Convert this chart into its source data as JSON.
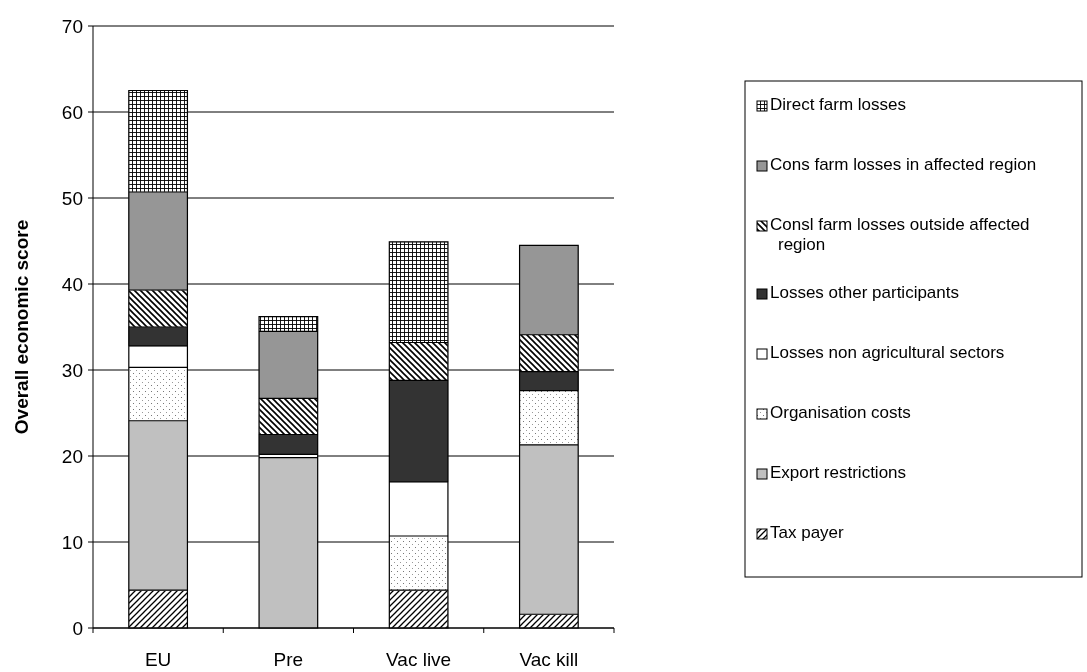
{
  "chart_data": {
    "type": "bar",
    "stacked": true,
    "ylabel": "Overall economic score",
    "categories": [
      "EU",
      "Pre",
      "Vac live",
      "Vac kill"
    ],
    "series": [
      {
        "name": "Tax payer",
        "color": "#a0a0a0",
        "values": [
          4.4,
          0,
          4.4,
          1.6
        ]
      },
      {
        "name": "Export restrictions",
        "color": "#c0c0c0",
        "values": [
          19.7,
          19.8,
          0,
          19.7
        ]
      },
      {
        "name": "Organisation costs",
        "color": "#eeeeee",
        "values": [
          6.2,
          0,
          6.3,
          6.3
        ]
      },
      {
        "name": "Losses non agricultural sectors",
        "color": "#ffffff",
        "values": [
          2.5,
          0.4,
          6.3,
          0
        ]
      },
      {
        "name": "Losses other participants",
        "color": "#333333",
        "values": [
          2.2,
          2.3,
          11.8,
          2.2
        ]
      },
      {
        "name": "Consl farm losses outside affected region",
        "color": "#a0a0a0",
        "values": [
          4.3,
          4.2,
          4.4,
          4.3
        ]
      },
      {
        "name": "Cons farm losses in affected region",
        "color": "#969696",
        "values": [
          11.4,
          7.8,
          0,
          10.4
        ]
      },
      {
        "name": "Direct farm losses",
        "color": "#b0b0b0",
        "values": [
          11.8,
          1.7,
          11.7,
          0
        ]
      }
    ],
    "ylim": [
      0,
      70
    ],
    "yticks": [
      0,
      10,
      20,
      30,
      40,
      50,
      60,
      70
    ],
    "grid": "y",
    "legend": "right"
  }
}
